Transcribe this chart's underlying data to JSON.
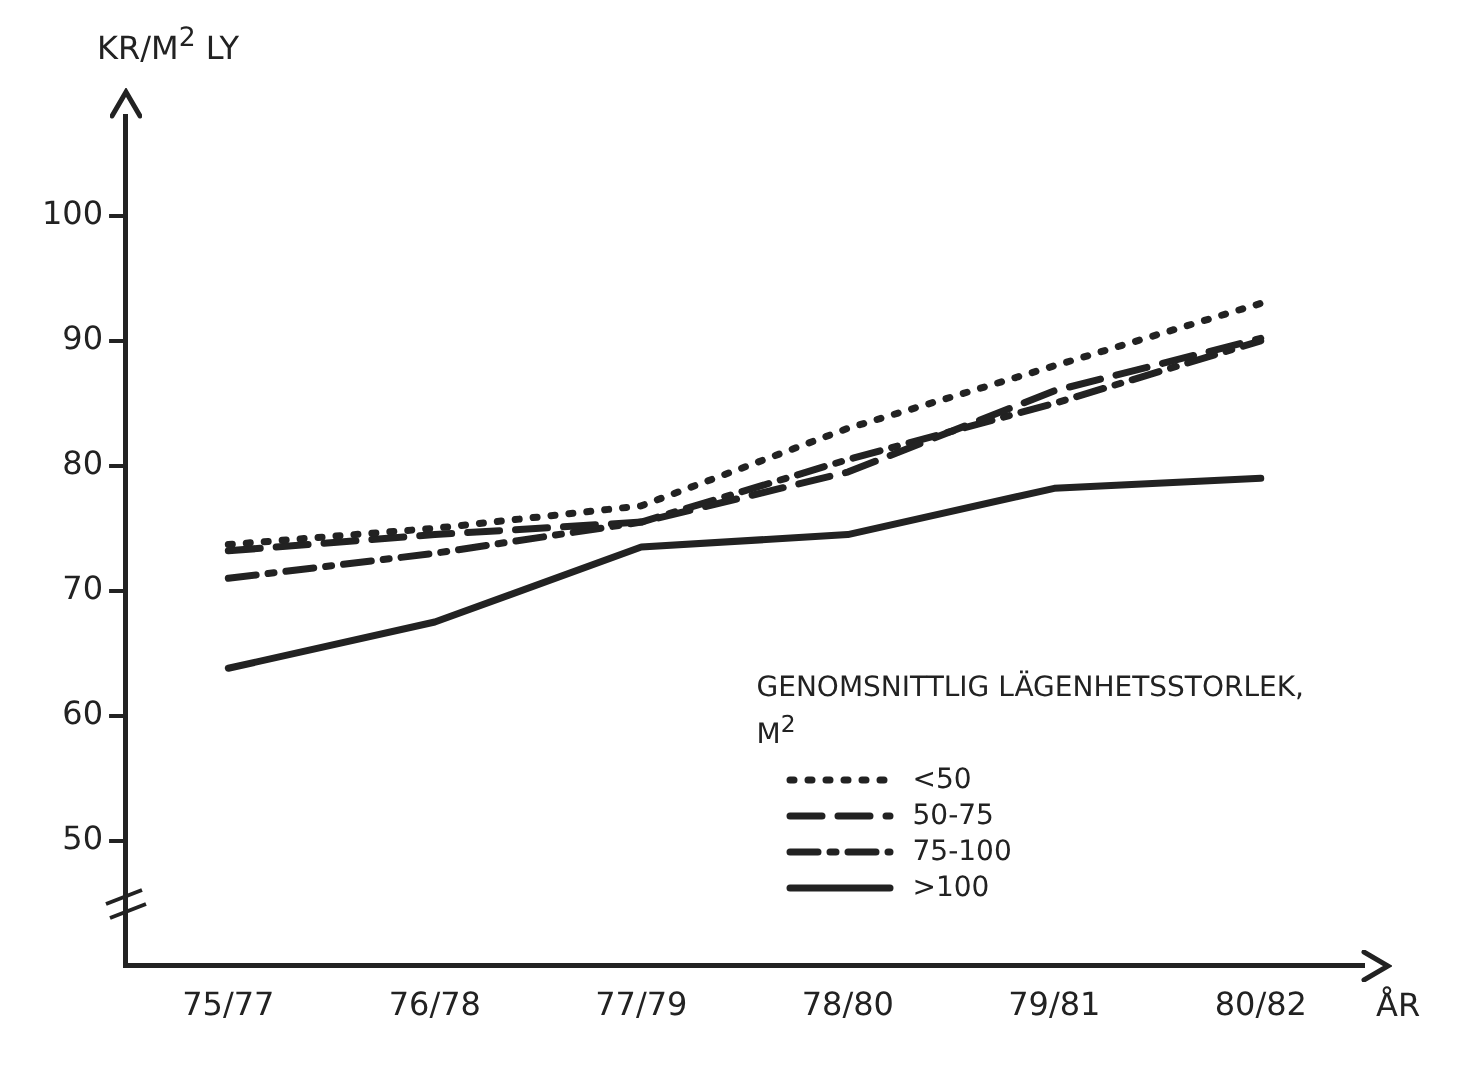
{
  "chart_data": {
    "type": "line",
    "xlabel": "ÅR",
    "ylabel": "KR/M$^{2}$ LY",
    "legend_title": "GENOMSNITTLIG LÄGENHETSSTORLEK, M$^{2}$",
    "categories": [
      "75/77",
      "76/78",
      "77/79",
      "78/80",
      "79/81",
      "80/82"
    ],
    "series": [
      {
        "name": "<50",
        "color": "#222222",
        "line_style": "dotted",
        "values": [
          73.7,
          75,
          76.8,
          83,
          88,
          93
        ]
      },
      {
        "name": "50-75",
        "color": "#222222",
        "line_style": "dashed",
        "values": [
          73.2,
          74.5,
          75.5,
          79.5,
          86,
          90.2
        ]
      },
      {
        "name": "75-100",
        "color": "#222222",
        "line_style": "dashdot",
        "values": [
          71,
          73,
          75.5,
          80.5,
          85,
          90
        ]
      },
      {
        "name": ">100",
        "color": "#222222",
        "line_style": "solid",
        "values": [
          63.8,
          67.5,
          73.5,
          74.5,
          78.2,
          79
        ]
      }
    ],
    "ylim": [
      40,
      108
    ],
    "yticks": [
      50,
      60,
      70,
      80,
      90,
      100
    ],
    "grid": false,
    "legend": "bottom right",
    "marker": "none"
  }
}
